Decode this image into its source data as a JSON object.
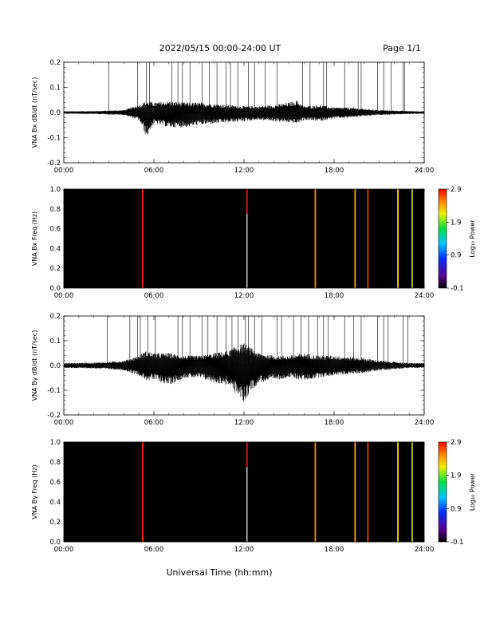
{
  "header": {
    "date_range": "2022/05/15  00:00-24:00 UT",
    "page": "Page 1/1"
  },
  "x_axis_title": "Universal Time (hh:mm)",
  "chart_data": [
    {
      "type": "line",
      "ylabel": "VNA Bx dB/dt (nT/sec)",
      "xlim": [
        0,
        24
      ],
      "ylim": [
        -0.2,
        0.2
      ],
      "yticks": [
        "0.2",
        "0.1",
        "0.0",
        "-0.1",
        "-0.2"
      ],
      "xticks": [
        "00:00",
        "06:00",
        "12:00",
        "18:00",
        "24:00"
      ],
      "grid": false,
      "envelope": {
        "x": [
          0,
          2,
          4,
          5,
          5.5,
          6,
          7,
          8,
          9,
          10,
          11,
          12,
          13,
          14,
          15,
          15.5,
          16,
          17,
          18,
          19,
          20,
          21,
          22,
          23,
          24
        ],
        "upper": [
          0.005,
          0.006,
          0.01,
          0.03,
          0.045,
          0.04,
          0.045,
          0.04,
          0.04,
          0.035,
          0.03,
          0.025,
          0.025,
          0.03,
          0.04,
          0.05,
          0.025,
          0.03,
          0.02,
          0.02,
          0.015,
          0.01,
          0.008,
          0.006,
          0.005
        ],
        "lower": [
          -0.005,
          -0.006,
          -0.01,
          -0.03,
          -0.1,
          -0.045,
          -0.06,
          -0.06,
          -0.05,
          -0.045,
          -0.04,
          -0.035,
          -0.03,
          -0.035,
          -0.04,
          -0.045,
          -0.03,
          -0.035,
          -0.025,
          -0.02,
          -0.015,
          -0.01,
          -0.008,
          -0.006,
          -0.005
        ]
      },
      "spikes_to_top": [
        3,
        4.9,
        5.5,
        5.7,
        7.2,
        7.6,
        7.9,
        8.4,
        9.2,
        9.7,
        10.2,
        10.8,
        11.1,
        11.6,
        12.3,
        12.7,
        13.4,
        14.2,
        15.9,
        16.4,
        17.3,
        17.5,
        18.7,
        19.6,
        19.8,
        20.9,
        21.3,
        21.8,
        22.6,
        22.7
      ]
    },
    {
      "type": "heatmap",
      "ylabel": "VNA Bx Freq (Hz)",
      "xlim": [
        0,
        24
      ],
      "ylim": [
        0,
        1
      ],
      "yticks": [
        "1.0",
        "0.8",
        "0.6",
        "0.4",
        "0.2",
        "0.0"
      ],
      "xticks": [
        "00:00",
        "06:00",
        "12:00",
        "18:00",
        "24:00"
      ],
      "background": "#000000",
      "colorbar": {
        "label": "Log₁₀ Power",
        "ticks": [
          "2.9",
          "1.9",
          "0.9",
          "-0.1"
        ],
        "range": [
          -0.1,
          2.9
        ]
      },
      "lines": [
        {
          "t": 5.25,
          "power": 2.9,
          "color": "#ff2a00"
        },
        {
          "t": 12.2,
          "power": 2.8,
          "color": "#e0202a",
          "lower_color": "#ffffff",
          "split": 0.75
        },
        {
          "t": 16.75,
          "power": 2.5,
          "color": "#ff8c00"
        },
        {
          "t": 19.4,
          "power": 2.4,
          "color": "#ffa500"
        },
        {
          "t": 20.25,
          "power": 2.9,
          "color": "#ff3300"
        },
        {
          "t": 22.25,
          "power": 2.2,
          "color": "#ffd200"
        },
        {
          "t": 23.2,
          "power": 2.0,
          "color": "#c8d200"
        }
      ]
    },
    {
      "type": "line",
      "ylabel": "VNA By dB/dt (nT/sec)",
      "xlim": [
        0,
        24
      ],
      "ylim": [
        -0.2,
        0.2
      ],
      "yticks": [
        "0.2",
        "0.1",
        "0.0",
        "-0.1",
        "-0.2"
      ],
      "xticks": [
        "00:00",
        "06:00",
        "12:00",
        "18:00",
        "24:00"
      ],
      "grid": false,
      "envelope": {
        "x": [
          0,
          2,
          3,
          4,
          5,
          5.5,
          6,
          7,
          8,
          9,
          10,
          11,
          11.5,
          12,
          12.5,
          13,
          14,
          15,
          16,
          17,
          18,
          19,
          20,
          21,
          22,
          23,
          24
        ],
        "upper": [
          0.01,
          0.012,
          0.015,
          0.02,
          0.04,
          0.06,
          0.05,
          0.05,
          0.04,
          0.04,
          0.05,
          0.06,
          0.08,
          0.09,
          0.07,
          0.05,
          0.04,
          0.04,
          0.05,
          0.04,
          0.04,
          0.035,
          0.03,
          0.02,
          0.015,
          0.01,
          0.01
        ],
        "lower": [
          -0.01,
          -0.012,
          -0.015,
          -0.02,
          -0.04,
          -0.06,
          -0.06,
          -0.08,
          -0.05,
          -0.05,
          -0.07,
          -0.08,
          -0.12,
          -0.15,
          -0.1,
          -0.07,
          -0.06,
          -0.05,
          -0.06,
          -0.05,
          -0.04,
          -0.035,
          -0.03,
          -0.02,
          -0.015,
          -0.01,
          -0.01
        ]
      },
      "spikes_to_top": [
        2.9,
        4.4,
        4.9,
        5.1,
        5.6,
        6.1,
        7.6,
        7.9,
        8.4,
        9.2,
        9.6,
        10.2,
        10.8,
        11.2,
        11.6,
        12.1,
        12.3,
        12.7,
        13.2,
        14.2,
        14.5,
        15.3,
        15.8,
        16.3,
        16.9,
        17.3,
        17.6,
        18.7,
        19.3,
        19.8,
        20.9,
        21.3,
        21.6,
        22.6,
        22.9
      ]
    },
    {
      "type": "heatmap",
      "ylabel": "VNA By Freq (Hz)",
      "xlim": [
        0,
        24
      ],
      "ylim": [
        0,
        1
      ],
      "yticks": [
        "1.0",
        "0.8",
        "0.6",
        "0.4",
        "0.2",
        "0.0"
      ],
      "xticks": [
        "00:00",
        "06:00",
        "12:00",
        "18:00",
        "24:00"
      ],
      "background": "#000000",
      "colorbar": {
        "label": "Log₁₀ Power",
        "ticks": [
          "2.9",
          "1.9",
          "0.9",
          "-0.1"
        ],
        "range": [
          -0.1,
          2.9
        ]
      },
      "lines": [
        {
          "t": 5.25,
          "power": 2.9,
          "color": "#ff2a00"
        },
        {
          "t": 12.2,
          "power": 2.8,
          "color": "#e0202a",
          "lower_color": "#ffffff",
          "split": 0.75
        },
        {
          "t": 16.75,
          "power": 2.5,
          "color": "#ff8c00"
        },
        {
          "t": 19.4,
          "power": 2.4,
          "color": "#ffa500"
        },
        {
          "t": 20.25,
          "power": 2.9,
          "color": "#ff3300"
        },
        {
          "t": 22.25,
          "power": 2.2,
          "color": "#ffd200"
        },
        {
          "t": 23.2,
          "power": 2.0,
          "color": "#c8d200"
        }
      ]
    }
  ]
}
